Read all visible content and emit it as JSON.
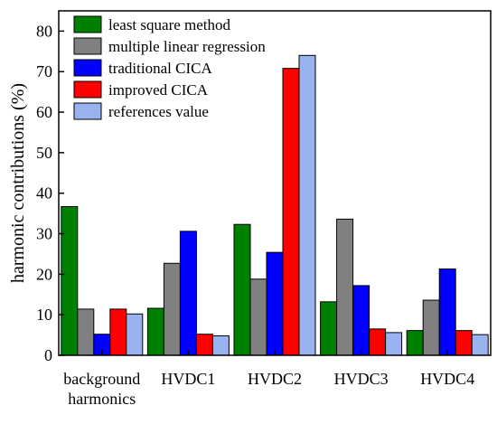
{
  "chart_data": {
    "type": "bar",
    "ylabel": "harmonic contributions (%)",
    "ylim": [
      0,
      85
    ],
    "yticks": [
      0,
      10,
      20,
      30,
      40,
      50,
      60,
      70,
      80
    ],
    "categories": [
      [
        "background",
        "harmonics"
      ],
      [
        "HVDC1"
      ],
      [
        "HVDC2"
      ],
      [
        "HVDC3"
      ],
      [
        "HVDC4"
      ]
    ],
    "legend_position": "top-left",
    "series": [
      {
        "name": "least square method",
        "color": "#008000",
        "values": [
          36.7,
          11.6,
          32.3,
          13.2,
          6.1
        ]
      },
      {
        "name": "multiple linear regression",
        "color": "#808080",
        "values": [
          11.4,
          22.7,
          18.8,
          33.6,
          13.6
        ]
      },
      {
        "name": "traditional CICA",
        "color": "#0000ff",
        "values": [
          5.2,
          30.6,
          25.4,
          17.2,
          21.3
        ]
      },
      {
        "name": "improved CICA",
        "color": "#ff0000",
        "values": [
          11.4,
          5.2,
          70.8,
          6.5,
          6.1
        ]
      },
      {
        "name": "references value",
        "color": "#99b3f0",
        "values": [
          10.2,
          4.8,
          74.0,
          5.6,
          5.1
        ]
      }
    ]
  }
}
